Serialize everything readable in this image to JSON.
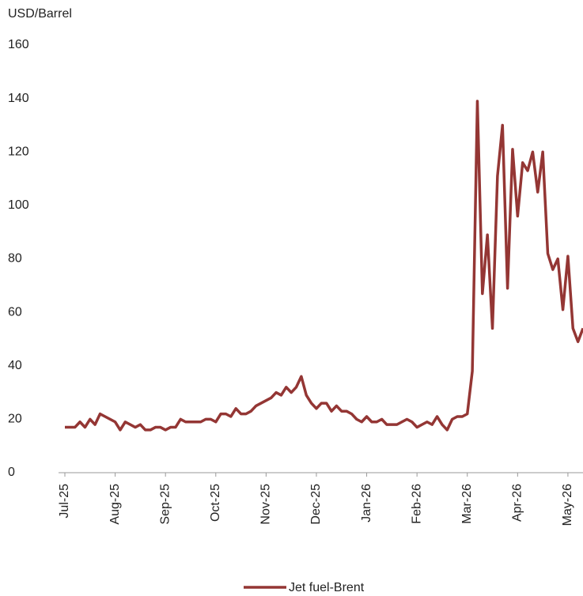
{
  "chart_data": {
    "type": "line",
    "y_label": "USD/Barrel",
    "categories": [
      "Jul-25",
      null,
      null,
      null,
      null,
      null,
      null,
      null,
      null,
      null,
      "Aug-25",
      null,
      null,
      null,
      null,
      null,
      null,
      null,
      null,
      null,
      "Sep-25",
      null,
      null,
      null,
      null,
      null,
      null,
      null,
      null,
      null,
      "Oct-25",
      null,
      null,
      null,
      null,
      null,
      null,
      null,
      null,
      null,
      "Nov-25",
      null,
      null,
      null,
      null,
      null,
      null,
      null,
      null,
      null,
      "Dec-25",
      null,
      null,
      null,
      null,
      null,
      null,
      null,
      null,
      null,
      "Jan-26",
      null,
      null,
      null,
      null,
      null,
      null,
      null,
      null,
      null,
      "Feb-26",
      null,
      null,
      null,
      null,
      null,
      null,
      null,
      null,
      null,
      "Mar-26",
      null,
      null,
      null,
      null,
      null,
      null,
      null,
      null,
      null,
      "Apr-26",
      null,
      null,
      null,
      null,
      null,
      null,
      null,
      null,
      null,
      "May-26",
      null,
      null,
      null
    ],
    "series": [
      {
        "name": "Jet fuel-Brent",
        "color": "#943634",
        "values": [
          17,
          17,
          17,
          19,
          17,
          20,
          18,
          22,
          21,
          20,
          19,
          16,
          19,
          18,
          17,
          18,
          16,
          16,
          17,
          17,
          16,
          17,
          17,
          20,
          19,
          19,
          19,
          19,
          20,
          20,
          19,
          22,
          22,
          21,
          24,
          22,
          22,
          23,
          25,
          26,
          27,
          28,
          30,
          29,
          32,
          30,
          32,
          36,
          29,
          26,
          24,
          26,
          26,
          23,
          25,
          23,
          23,
          22,
          20,
          19,
          21,
          19,
          19,
          20,
          18,
          18,
          18,
          19,
          20,
          19,
          17,
          18,
          19,
          18,
          21,
          18,
          16,
          20,
          21,
          21,
          22,
          38,
          139,
          67,
          89,
          54,
          111,
          130,
          69,
          121,
          96,
          116,
          113,
          120,
          105,
          120,
          82,
          76,
          80,
          61,
          81,
          54,
          49,
          54
        ]
      }
    ],
    "ylim": [
      0,
      160
    ],
    "yticks": [
      0,
      20,
      40,
      60,
      80,
      100,
      120,
      140,
      160
    ],
    "grid": false,
    "legend": "bottom"
  }
}
